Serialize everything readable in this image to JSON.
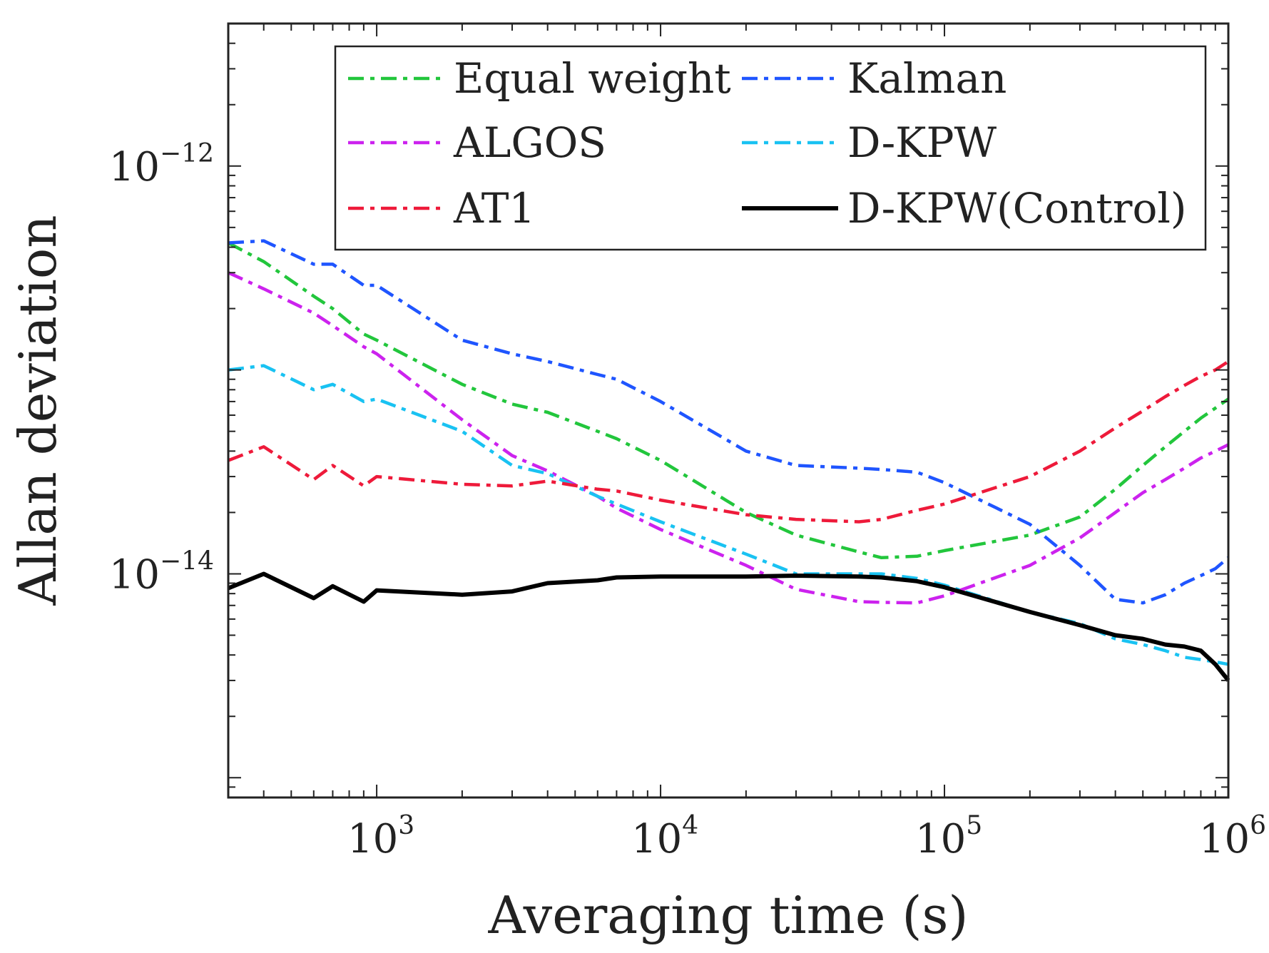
{
  "chart_data": {
    "type": "line",
    "title": "",
    "xlabel": "Averaging time (s)",
    "ylabel": "Allan deviation",
    "xscale": "log",
    "yscale": "log",
    "xlim": [
      300,
      1000000
    ],
    "ylim": [
      8e-16,
      5e-12
    ],
    "grid": false,
    "legend_position": "top-right",
    "x_ticks": [
      {
        "value": 1000,
        "base": "10",
        "exp": "3"
      },
      {
        "value": 10000,
        "base": "10",
        "exp": "4"
      },
      {
        "value": 100000,
        "base": "10",
        "exp": "5"
      },
      {
        "value": 1000000,
        "base": "10",
        "exp": "6"
      }
    ],
    "y_ticks": [
      {
        "value": 1e-14,
        "base": "10",
        "exp": "−14"
      },
      {
        "value": 1e-12,
        "base": "10",
        "exp": "−12"
      }
    ],
    "x": [
      300,
      400,
      600,
      700,
      900,
      1000,
      2000,
      3000,
      4000,
      6000,
      7000,
      10000,
      20000,
      30000,
      50000,
      60000,
      80000,
      100000,
      200000,
      300000,
      400000,
      500000,
      600000,
      700000,
      800000,
      900000,
      1000000
    ],
    "series": [
      {
        "name": "Equal weight",
        "color": "#22c63c",
        "style": "dashdot",
        "values": [
          4.2e-13,
          3.4e-13,
          2.3e-13,
          2e-13,
          1.5e-13,
          1.4e-13,
          8.5e-14,
          6.8e-14,
          6.2e-14,
          5e-14,
          4.6e-14,
          3.6e-14,
          2e-14,
          1.55e-14,
          1.28e-14,
          1.2e-14,
          1.22e-14,
          1.3e-14,
          1.55e-14,
          1.9e-14,
          2.6e-14,
          3.4e-14,
          4.2e-14,
          5e-14,
          5.8e-14,
          6.5e-14,
          7.2e-14
        ]
      },
      {
        "name": "Kalman",
        "color": "#1f55ff",
        "style": "dashdot",
        "values": [
          4.2e-13,
          4.3e-13,
          3.3e-13,
          3.3e-13,
          2.6e-13,
          2.6e-13,
          1.4e-13,
          1.2e-13,
          1.1e-13,
          9.5e-14,
          9e-14,
          7e-14,
          4e-14,
          3.4e-14,
          3.3e-14,
          3.25e-14,
          3.15e-14,
          2.8e-14,
          1.75e-14,
          1.1e-14,
          7.5e-15,
          7.2e-15,
          7.9e-15,
          9e-15,
          9.8e-15,
          1.06e-14,
          1.2e-14
        ]
      },
      {
        "name": "ALGOS",
        "color": "#cc22ee",
        "style": "dashdot",
        "values": [
          3e-13,
          2.5e-13,
          1.9e-13,
          1.65e-13,
          1.3e-13,
          1.2e-13,
          5.7e-14,
          3.8e-14,
          3.2e-14,
          2.4e-14,
          2.1e-14,
          1.65e-14,
          1.1e-14,
          8.4e-15,
          7.3e-15,
          7.25e-15,
          7.2e-15,
          7.8e-15,
          1.1e-14,
          1.5e-14,
          2e-14,
          2.5e-14,
          2.9e-14,
          3.3e-14,
          3.7e-14,
          4e-14,
          4.3e-14
        ]
      },
      {
        "name": "D-KPW",
        "color": "#19c2f2",
        "style": "dashdot",
        "values": [
          1e-13,
          1.05e-13,
          8e-14,
          8.5e-14,
          7e-14,
          7.2e-14,
          5e-14,
          3.4e-14,
          3.1e-14,
          2.4e-14,
          2.2e-14,
          1.8e-14,
          1.25e-14,
          1e-14,
          1e-14,
          1e-14,
          9.5e-15,
          8.8e-15,
          6.5e-15,
          5.7e-15,
          4.8e-15,
          4.5e-15,
          4.2e-15,
          3.9e-15,
          3.8e-15,
          3.7e-15,
          3.6e-15
        ]
      },
      {
        "name": "AT1",
        "color": "#ee1a3a",
        "style": "dashdot",
        "values": [
          3.6e-14,
          4.2e-14,
          2.9e-14,
          3.4e-14,
          2.7e-14,
          3e-14,
          2.75e-14,
          2.7e-14,
          2.85e-14,
          2.6e-14,
          2.55e-14,
          2.3e-14,
          1.95e-14,
          1.85e-14,
          1.8e-14,
          1.85e-14,
          2.05e-14,
          2.2e-14,
          3e-14,
          4e-14,
          5.2e-14,
          6.3e-14,
          7.4e-14,
          8.4e-14,
          9.3e-14,
          1e-13,
          1.1e-13
        ]
      },
      {
        "name": "D-KPW(Control)",
        "color": "#000000",
        "style": "solid",
        "values": [
          8.5e-15,
          1e-14,
          7.6e-15,
          8.7e-15,
          7.3e-15,
          8.3e-15,
          7.9e-15,
          8.2e-15,
          9e-15,
          9.3e-15,
          9.6e-15,
          9.7e-15,
          9.7e-15,
          9.8e-15,
          9.7e-15,
          9.6e-15,
          9.2e-15,
          8.6e-15,
          6.5e-15,
          5.6e-15,
          5e-15,
          4.8e-15,
          4.5e-15,
          4.4e-15,
          4.2e-15,
          3.6e-15,
          3e-15
        ]
      }
    ],
    "legend_order": [
      "Equal weight",
      "Kalman",
      "ALGOS",
      "D-KPW",
      "AT1",
      "D-KPW(Control)"
    ]
  }
}
